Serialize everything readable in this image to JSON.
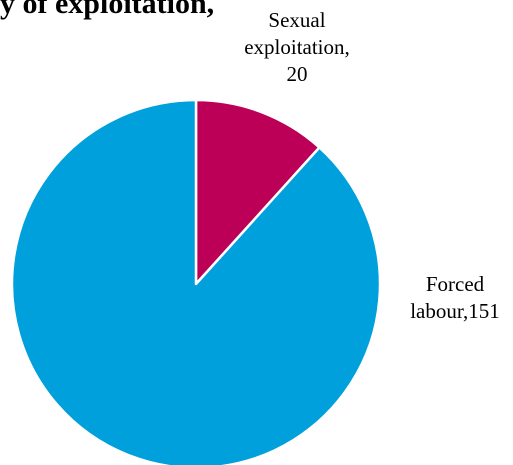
{
  "chart_data": {
    "type": "pie",
    "title": "y of exploitation,",
    "slices": [
      {
        "label": "Forced labour",
        "value": 151,
        "color": "#00a0dc",
        "label_lines": [
          "Forced",
          "labour,151"
        ]
      },
      {
        "label": "Sexual exploitation",
        "value": 20,
        "color": "#bd0057",
        "label_lines": [
          "Sexual",
          "exploitation,",
          "20"
        ]
      }
    ],
    "start_angle_deg": 0,
    "direction": "clockwise",
    "slice_border_color": "#ffffff"
  }
}
